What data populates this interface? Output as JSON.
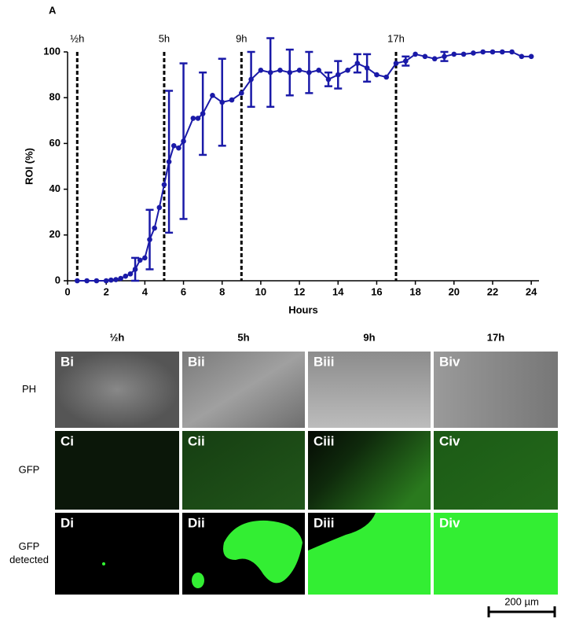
{
  "chart_data": {
    "type": "line",
    "panel_label": "A",
    "x_label": "Hours",
    "y_label": "ROI (%)",
    "xlim": [
      0,
      24.4
    ],
    "xticks": [
      0,
      2,
      4,
      6,
      8,
      10,
      12,
      14,
      16,
      18,
      20,
      22,
      24
    ],
    "ylim": [
      0,
      100
    ],
    "yticks": [
      0,
      20,
      40,
      60,
      80,
      100
    ],
    "markers": [
      {
        "x": 0.5,
        "label": "½h"
      },
      {
        "x": 5,
        "label": "5h"
      },
      {
        "x": 9,
        "label": "9h"
      },
      {
        "x": 17,
        "label": "17h"
      }
    ],
    "series": [
      {
        "color": "#1a1aa8",
        "x": [
          0.5,
          1,
          1.5,
          2,
          2.25,
          2.5,
          2.75,
          3,
          3.25,
          3.5,
          3.75,
          4,
          4.25,
          4.5,
          4.75,
          5,
          5.25,
          5.5,
          5.75,
          6,
          6.5,
          6.75,
          7,
          7.5,
          8,
          8.5,
          9,
          9.5,
          10,
          10.5,
          11,
          11.5,
          12,
          12.5,
          13,
          13.5,
          14,
          14.5,
          15,
          15.5,
          16,
          16.5,
          17,
          17.5,
          18,
          18.5,
          19,
          19.5,
          20,
          20.5,
          21,
          21.5,
          22,
          22.5,
          23,
          23.5,
          24
        ],
        "values": [
          0,
          0,
          0,
          0,
          0.3,
          0.5,
          1,
          2,
          3,
          5,
          9,
          10,
          18,
          23,
          32,
          42,
          52,
          59,
          58,
          61,
          71,
          71,
          73,
          81,
          78,
          79,
          82,
          88,
          92,
          91,
          92,
          91,
          92,
          91,
          92,
          88,
          90,
          92,
          95,
          93,
          90,
          89,
          95,
          96,
          99,
          98,
          97,
          98,
          99,
          99,
          99.5,
          100,
          100,
          100,
          100,
          98,
          98
        ],
        "errors": [
          null,
          null,
          null,
          null,
          null,
          null,
          null,
          null,
          null,
          5,
          null,
          null,
          13,
          null,
          null,
          null,
          31,
          null,
          null,
          34,
          null,
          null,
          18,
          null,
          19,
          null,
          null,
          12,
          null,
          15,
          null,
          10,
          null,
          9,
          null,
          3,
          6,
          null,
          4,
          6,
          null,
          null,
          null,
          2,
          null,
          null,
          null,
          2,
          null,
          null,
          null,
          null,
          null,
          null,
          null,
          null,
          null
        ]
      }
    ]
  },
  "panels": {
    "columns": [
      "½h",
      "5h",
      "9h",
      "17h"
    ],
    "rows": [
      "PH",
      "GFP",
      "GFP\ndetected"
    ],
    "labels": [
      [
        "Bi",
        "Bii",
        "Biii",
        "Biv"
      ],
      [
        "Ci",
        "Cii",
        "Ciii",
        "Civ"
      ],
      [
        "Di",
        "Dii",
        "Diii",
        "Div"
      ]
    ],
    "scale_bar": "200 µm"
  }
}
